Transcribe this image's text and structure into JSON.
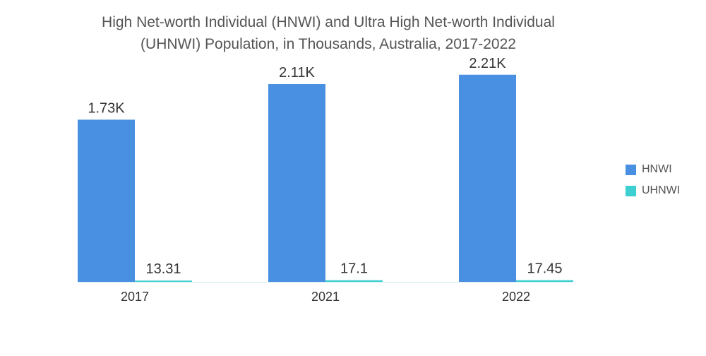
{
  "chart_data": {
    "type": "bar",
    "title_lines": [
      "High Net-worth Individual (HNWI) and Ultra High Net-worth Individual",
      "(UHNWI) Population, in Thousands, Australia, 2017-2022"
    ],
    "categories": [
      "2017",
      "2021",
      "2022"
    ],
    "series": [
      {
        "name": "HNWI",
        "color": "#4a90e2",
        "values": [
          1730,
          2110,
          2210
        ],
        "labels": [
          "1.73K",
          "2.11K",
          "2.21K"
        ]
      },
      {
        "name": "UHNWI",
        "color": "#3ecfd1",
        "values": [
          13.31,
          17.1,
          17.45
        ],
        "labels": [
          "13.31",
          "17.1",
          "17.45"
        ]
      }
    ],
    "ylim": [
      0,
      2600
    ],
    "grid": false,
    "legend": "right"
  }
}
